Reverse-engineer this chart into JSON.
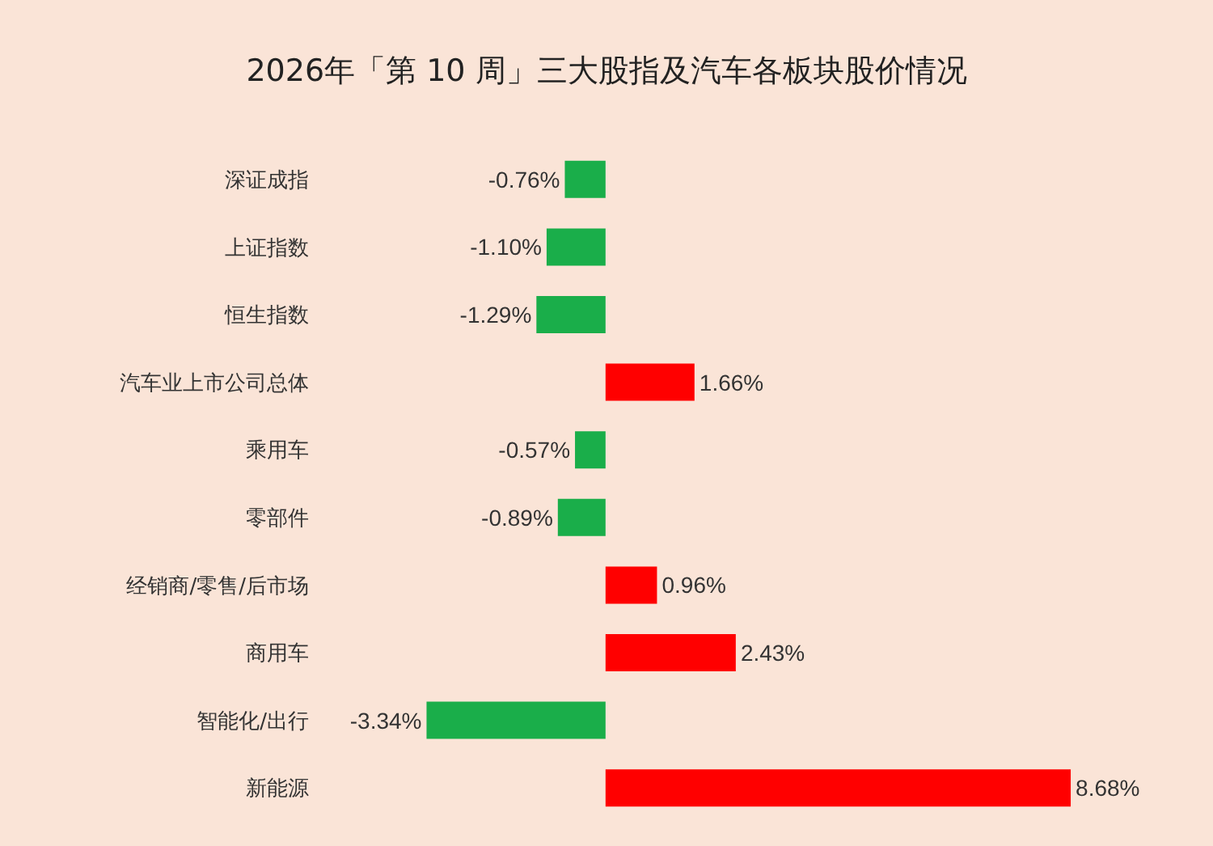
{
  "chart_data": {
    "type": "bar",
    "orientation": "horizontal",
    "title": "2026年「第 10 周」三大股指及汽车各板块股价情况",
    "categories": [
      "深证成指",
      "上证指数",
      "恒生指数",
      "汽车业上市公司总体",
      "乘用车",
      "零部件",
      "经销商/零售/后市场",
      "商用车",
      "智能化/出行",
      "新能源"
    ],
    "values": [
      -0.76,
      -1.1,
      -1.29,
      1.66,
      -0.57,
      -0.89,
      0.96,
      2.43,
      -3.34,
      8.68
    ],
    "value_labels": [
      "-0.76%",
      "-1.10%",
      "-1.29%",
      "1.66%",
      "-0.57%",
      "-0.89%",
      "0.96%",
      "2.43%",
      "-3.34%",
      "8.68%"
    ],
    "colors": [
      "#1aae4a",
      "#1aae4a",
      "#1aae4a",
      "#ff0000",
      "#1aae4a",
      "#1aae4a",
      "#ff0000",
      "#ff0000",
      "#1aae4a",
      "#ff0000"
    ]
  }
}
